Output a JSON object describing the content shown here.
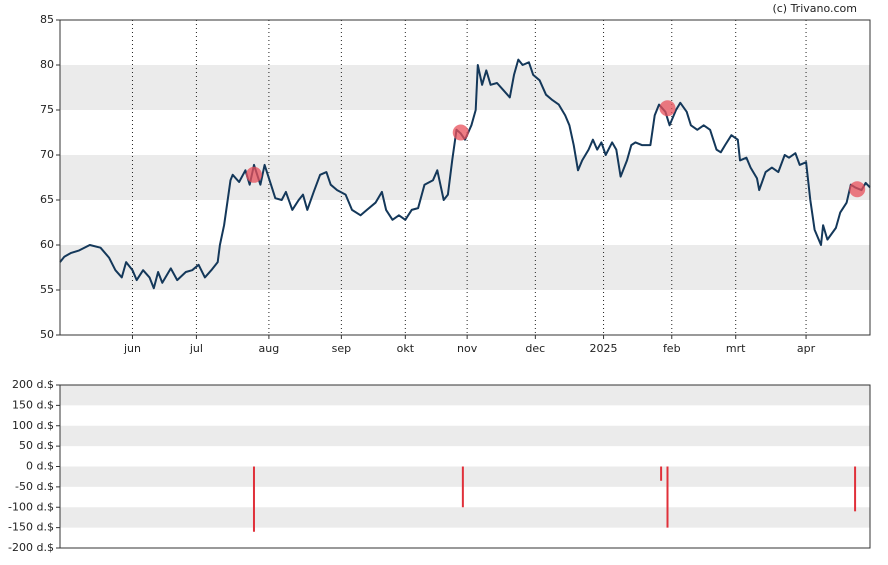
{
  "credit": "(c) Trivano.com",
  "chart_data": [
    {
      "type": "line",
      "x": [
        0,
        2,
        5,
        9,
        14,
        19,
        23,
        26,
        29,
        31,
        34,
        36,
        39,
        42,
        44,
        46,
        48,
        52,
        55,
        59,
        62,
        65,
        68,
        71,
        74,
        75,
        77,
        80,
        81,
        84,
        87,
        89,
        91,
        94,
        96,
        99,
        101,
        104,
        106,
        109,
        112,
        114,
        116,
        119,
        122,
        125,
        127,
        130,
        134,
        137,
        141,
        144,
        148,
        151,
        153,
        156,
        159,
        162,
        165,
        168,
        171,
        175,
        177,
        180,
        182,
        184,
        186,
        188,
        190,
        193,
        195,
        196,
        198,
        200,
        202,
        205,
        208,
        211,
        213,
        215,
        217,
        220,
        222,
        225,
        228,
        231,
        234,
        237,
        239,
        241,
        243,
        245,
        248,
        250,
        252,
        254,
        256,
        259,
        261,
        263,
        266,
        268,
        270,
        273,
        277,
        279,
        281,
        284,
        286,
        289,
        291,
        294,
        296,
        299,
        302,
        305,
        308,
        310,
        312,
        315,
        318,
        319,
        322,
        324,
        327,
        328,
        331,
        334,
        337,
        340,
        342,
        345,
        347,
        350,
        352,
        354,
        357,
        358,
        360,
        364,
        366,
        369,
        371,
        373,
        376,
        378,
        380
      ],
      "series": [
        {
          "color": "#14385a",
          "values": [
            58.1,
            58.7,
            59.1,
            59.4,
            60.0,
            59.7,
            58.6,
            57.2,
            56.4,
            58.1,
            57.2,
            56.1,
            57.2,
            56.4,
            55.2,
            57.0,
            55.8,
            57.4,
            56.1,
            57.0,
            57.2,
            57.8,
            56.4,
            57.2,
            58.1,
            60.0,
            62.2,
            67.2,
            67.8,
            67.0,
            68.3,
            66.7,
            68.9,
            66.7,
            68.9,
            66.7,
            65.2,
            65.0,
            65.9,
            63.9,
            65.0,
            65.6,
            63.9,
            65.9,
            67.8,
            68.1,
            66.7,
            66.1,
            65.6,
            63.9,
            63.3,
            63.9,
            64.7,
            65.9,
            63.9,
            62.8,
            63.3,
            62.8,
            63.9,
            64.1,
            66.7,
            67.2,
            68.3,
            65.0,
            65.6,
            69.4,
            72.8,
            72.4,
            71.7,
            73.3,
            75.0,
            80.0,
            77.8,
            79.4,
            77.8,
            78.0,
            77.2,
            76.4,
            78.9,
            80.6,
            80.0,
            80.3,
            78.9,
            78.3,
            76.7,
            76.1,
            75.6,
            74.4,
            73.3,
            71.1,
            68.3,
            69.4,
            70.6,
            71.7,
            70.6,
            71.4,
            70.0,
            71.4,
            70.6,
            67.6,
            69.4,
            71.1,
            71.4,
            71.1,
            71.1,
            74.4,
            75.6,
            74.8,
            73.3,
            75.0,
            75.8,
            74.8,
            73.3,
            72.8,
            73.3,
            72.8,
            70.6,
            70.3,
            71.1,
            72.2,
            71.7,
            69.4,
            69.7,
            68.6,
            67.4,
            66.1,
            68.1,
            68.6,
            68.1,
            70.0,
            69.7,
            70.2,
            68.9,
            69.2,
            65.0,
            61.7,
            60.0,
            62.2,
            60.6,
            61.9,
            63.6,
            64.7,
            66.7,
            66.4,
            66.1,
            66.9,
            66.4
          ]
        }
      ],
      "highlights": {
        "color": "#e8505b",
        "x": [
          91,
          188,
          285,
          374
        ],
        "values": [
          67.8,
          72.5,
          75.2,
          66.2
        ]
      },
      "xlim": [
        0,
        380
      ],
      "xticks": [
        {
          "value": 34,
          "label": "jun"
        },
        {
          "value": 64,
          "label": "jul"
        },
        {
          "value": 98,
          "label": "aug"
        },
        {
          "value": 132,
          "label": "sep"
        },
        {
          "value": 162,
          "label": "okt"
        },
        {
          "value": 191,
          "label": "nov"
        },
        {
          "value": 223,
          "label": "dec"
        },
        {
          "value": 255,
          "label": "2025"
        },
        {
          "value": 287,
          "label": "feb"
        },
        {
          "value": 317,
          "label": "mrt"
        },
        {
          "value": 350,
          "label": "apr"
        }
      ],
      "ylim": [
        50,
        85
      ],
      "yticks": [
        50,
        55,
        60,
        65,
        70,
        75,
        80,
        85
      ],
      "grid": true
    },
    {
      "type": "bar",
      "x": [
        91,
        189,
        282,
        285,
        373
      ],
      "values": [
        -160,
        -100,
        -35,
        -150,
        -110
      ],
      "color": "#e0303a",
      "xlim": [
        0,
        380
      ],
      "ylim": [
        -200,
        200
      ],
      "yticks": [
        {
          "value": -200,
          "label": "-200 d.$"
        },
        {
          "value": -150,
          "label": "-150 d.$"
        },
        {
          "value": -100,
          "label": "-100 d.$"
        },
        {
          "value": -50,
          "label": "-50 d.$"
        },
        {
          "value": 0,
          "label": "0 d.$"
        },
        {
          "value": 50,
          "label": "50 d.$"
        },
        {
          "value": 100,
          "label": "100 d.$"
        },
        {
          "value": 150,
          "label": "150 d.$"
        },
        {
          "value": 200,
          "label": "200 d.$"
        }
      ],
      "grid": true
    }
  ]
}
